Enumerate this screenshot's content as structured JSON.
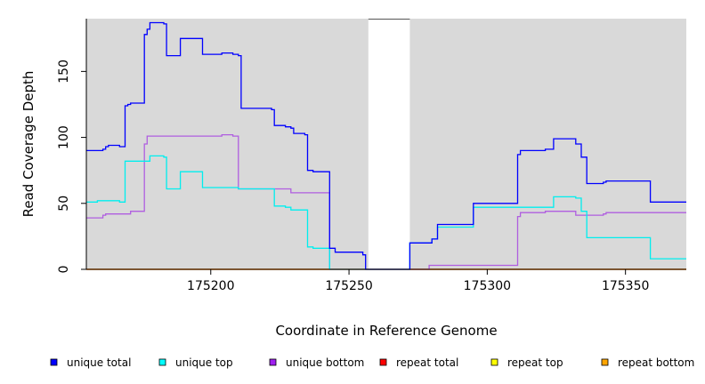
{
  "chart_data": {
    "type": "line",
    "title": "",
    "xlabel": "Coordinate in Reference Genome",
    "ylabel": "Read Coverage Depth",
    "xlim": [
      175155,
      175372
    ],
    "ylim": [
      0,
      190
    ],
    "xticks": [
      175200,
      175250,
      175300,
      175350
    ],
    "yticks": [
      0,
      50,
      100,
      150
    ],
    "excluded_region": [
      175257,
      175272
    ],
    "legend_position": "bottom",
    "series": [
      {
        "name": "unique total",
        "color": "#0000ff",
        "points": [
          [
            175155,
            90
          ],
          [
            175161,
            90
          ],
          [
            175161,
            91
          ],
          [
            175162,
            91
          ],
          [
            175162,
            93
          ],
          [
            175163,
            93
          ],
          [
            175163,
            94
          ],
          [
            175167,
            94
          ],
          [
            175167,
            93
          ],
          [
            175169,
            93
          ],
          [
            175169,
            124
          ],
          [
            175170,
            124
          ],
          [
            175170,
            125
          ],
          [
            175171,
            125
          ],
          [
            175171,
            126
          ],
          [
            175176,
            126
          ],
          [
            175176,
            178
          ],
          [
            175177,
            178
          ],
          [
            175177,
            182
          ],
          [
            175178,
            182
          ],
          [
            175178,
            187
          ],
          [
            175183,
            187
          ],
          [
            175183,
            186
          ],
          [
            175184,
            186
          ],
          [
            175184,
            162
          ],
          [
            175189,
            162
          ],
          [
            175189,
            175
          ],
          [
            175197,
            175
          ],
          [
            175197,
            163
          ],
          [
            175204,
            163
          ],
          [
            175204,
            164
          ],
          [
            175208,
            164
          ],
          [
            175208,
            163
          ],
          [
            175210,
            163
          ],
          [
            175210,
            162
          ],
          [
            175211,
            162
          ],
          [
            175211,
            122
          ],
          [
            175222,
            122
          ],
          [
            175222,
            121
          ],
          [
            175223,
            121
          ],
          [
            175223,
            109
          ],
          [
            175227,
            109
          ],
          [
            175227,
            108
          ],
          [
            175229,
            108
          ],
          [
            175229,
            107
          ],
          [
            175230,
            107
          ],
          [
            175230,
            103
          ],
          [
            175234,
            103
          ],
          [
            175234,
            102
          ],
          [
            175235,
            102
          ],
          [
            175235,
            75
          ],
          [
            175237,
            75
          ],
          [
            175237,
            74
          ],
          [
            175243,
            74
          ],
          [
            175243,
            16
          ],
          [
            175245,
            16
          ],
          [
            175245,
            13
          ],
          [
            175255,
            13
          ],
          [
            175255,
            11
          ],
          [
            175256,
            11
          ],
          [
            175256,
            0
          ],
          [
            175272,
            0
          ],
          [
            175272,
            20
          ],
          [
            175280,
            20
          ],
          [
            175280,
            23
          ],
          [
            175282,
            23
          ],
          [
            175282,
            34
          ],
          [
            175295,
            34
          ],
          [
            175295,
            50
          ],
          [
            175311,
            50
          ],
          [
            175311,
            87
          ],
          [
            175312,
            87
          ],
          [
            175312,
            90
          ],
          [
            175321,
            90
          ],
          [
            175321,
            91
          ],
          [
            175324,
            91
          ],
          [
            175324,
            99
          ],
          [
            175332,
            99
          ],
          [
            175332,
            95
          ],
          [
            175334,
            95
          ],
          [
            175334,
            85
          ],
          [
            175336,
            85
          ],
          [
            175336,
            65
          ],
          [
            175342,
            65
          ],
          [
            175342,
            66
          ],
          [
            175343,
            66
          ],
          [
            175343,
            67
          ],
          [
            175359,
            67
          ],
          [
            175359,
            51
          ],
          [
            175372,
            51
          ]
        ]
      },
      {
        "name": "unique top",
        "color": "#00eeee",
        "points": [
          [
            175155,
            51
          ],
          [
            175159,
            51
          ],
          [
            175159,
            52
          ],
          [
            175167,
            52
          ],
          [
            175167,
            51
          ],
          [
            175169,
            51
          ],
          [
            175169,
            82
          ],
          [
            175178,
            82
          ],
          [
            175178,
            86
          ],
          [
            175183,
            86
          ],
          [
            175183,
            85
          ],
          [
            175184,
            85
          ],
          [
            175184,
            61
          ],
          [
            175189,
            61
          ],
          [
            175189,
            74
          ],
          [
            175197,
            74
          ],
          [
            175197,
            62
          ],
          [
            175210,
            62
          ],
          [
            175210,
            61
          ],
          [
            175223,
            61
          ],
          [
            175223,
            48
          ],
          [
            175227,
            48
          ],
          [
            175227,
            47
          ],
          [
            175229,
            47
          ],
          [
            175229,
            45
          ],
          [
            175235,
            45
          ],
          [
            175235,
            17
          ],
          [
            175237,
            17
          ],
          [
            175237,
            16
          ],
          [
            175243,
            16
          ],
          [
            175243,
            0
          ],
          [
            175272,
            0
          ],
          [
            175272,
            20
          ],
          [
            175280,
            20
          ],
          [
            175280,
            23
          ],
          [
            175282,
            23
          ],
          [
            175282,
            32
          ],
          [
            175295,
            32
          ],
          [
            175295,
            47
          ],
          [
            175324,
            47
          ],
          [
            175324,
            55
          ],
          [
            175332,
            55
          ],
          [
            175332,
            54
          ],
          [
            175334,
            54
          ],
          [
            175334,
            44
          ],
          [
            175336,
            44
          ],
          [
            175336,
            24
          ],
          [
            175359,
            24
          ],
          [
            175359,
            8
          ],
          [
            175372,
            8
          ]
        ]
      },
      {
        "name": "unique bottom",
        "color": "#b05ee0",
        "points": [
          [
            175155,
            39
          ],
          [
            175161,
            39
          ],
          [
            175161,
            41
          ],
          [
            175162,
            41
          ],
          [
            175162,
            42
          ],
          [
            175171,
            42
          ],
          [
            175171,
            44
          ],
          [
            175176,
            44
          ],
          [
            175176,
            95
          ],
          [
            175177,
            95
          ],
          [
            175177,
            101
          ],
          [
            175204,
            101
          ],
          [
            175204,
            102
          ],
          [
            175208,
            102
          ],
          [
            175208,
            101
          ],
          [
            175210,
            101
          ],
          [
            175210,
            61
          ],
          [
            175229,
            61
          ],
          [
            175229,
            58
          ],
          [
            175243,
            58
          ],
          [
            175243,
            0
          ],
          [
            175279,
            0
          ],
          [
            175279,
            3
          ],
          [
            175311,
            3
          ],
          [
            175311,
            40
          ],
          [
            175312,
            40
          ],
          [
            175312,
            43
          ],
          [
            175321,
            43
          ],
          [
            175321,
            44
          ],
          [
            175332,
            44
          ],
          [
            175332,
            41
          ],
          [
            175342,
            41
          ],
          [
            175342,
            42
          ],
          [
            175343,
            42
          ],
          [
            175343,
            43
          ],
          [
            175372,
            43
          ]
        ]
      },
      {
        "name": "repeat total",
        "color": "#ff0000",
        "points": [
          [
            175155,
            0
          ],
          [
            175372,
            0
          ]
        ]
      },
      {
        "name": "repeat top",
        "color": "#ffff00",
        "points": [
          [
            175155,
            0
          ],
          [
            175372,
            0
          ]
        ]
      },
      {
        "name": "repeat bottom",
        "color": "#ffa500",
        "points": [
          [
            175155,
            0
          ],
          [
            175372,
            0
          ]
        ]
      }
    ]
  },
  "legend": [
    {
      "label": "unique total",
      "color": "#0000ff"
    },
    {
      "label": "unique top",
      "color": "#00ffff"
    },
    {
      "label": "unique bottom",
      "color": "#a020f0"
    },
    {
      "label": "repeat total",
      "color": "#ff0000"
    },
    {
      "label": "repeat top",
      "color": "#ffff00"
    },
    {
      "label": "repeat bottom",
      "color": "#ffa500"
    }
  ]
}
